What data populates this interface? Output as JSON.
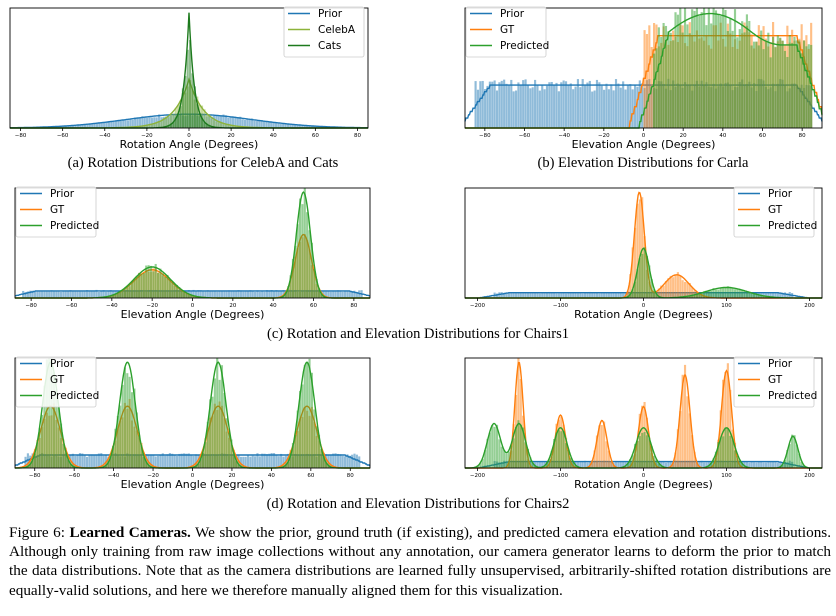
{
  "colors": {
    "prior": "#1f77b4",
    "gt": "#ff7f0e",
    "predicted": "#2ca02c",
    "celeba": "#8db33a",
    "cats": "#1d7a1d"
  },
  "panels": [
    {
      "id": "a",
      "xlabel": "Rotation Angle (Degrees)",
      "caption": "(a) Rotation Distributions for CelebA and Cats",
      "legend": [
        "Prior",
        "CelebA",
        "Cats"
      ],
      "legend_pos": "top-right",
      "ticks": [
        "−80",
        "−60",
        "−40",
        "−20",
        "0",
        "20",
        "40",
        "60",
        "80"
      ]
    },
    {
      "id": "b",
      "xlabel": "Elevation Angle (Degrees)",
      "caption": "(b) Elevation Distributions for Carla",
      "legend": [
        "Prior",
        "GT",
        "Predicted"
      ],
      "legend_pos": "top-left",
      "ticks": [
        "−80",
        "−60",
        "−40",
        "−20",
        "0",
        "20",
        "40",
        "60",
        "80"
      ]
    },
    {
      "id": "c1",
      "xlabel": "Elevation Angle (Degrees)",
      "legend": [
        "Prior",
        "GT",
        "Predicted"
      ],
      "legend_pos": "top-left",
      "ticks": [
        "−80",
        "−60",
        "−40",
        "−20",
        "0",
        "20",
        "40",
        "60",
        "80"
      ]
    },
    {
      "id": "c2",
      "xlabel": "Rotation Angle (Degrees)",
      "legend": [
        "Prior",
        "GT",
        "Predicted"
      ],
      "legend_pos": "top-right",
      "ticks": [
        "−200",
        "−100",
        "0",
        "100",
        "200"
      ]
    },
    {
      "id": "d1",
      "xlabel": "Elevation Angle (Degrees)",
      "legend": [
        "Prior",
        "GT",
        "Predicted"
      ],
      "legend_pos": "top-left",
      "ticks": [
        "−80",
        "−60",
        "−40",
        "−20",
        "0",
        "20",
        "40",
        "60",
        "80"
      ]
    },
    {
      "id": "d2",
      "xlabel": "Rotation Angle (Degrees)",
      "legend": [
        "Prior",
        "GT",
        "Predicted"
      ],
      "legend_pos": "top-right",
      "ticks": [
        "−200",
        "−100",
        "0",
        "100",
        "200"
      ]
    }
  ],
  "row_captions": {
    "c": "(c) Rotation and Elevation Distributions for Chairs1",
    "d": "(d) Rotation and Elevation Distributions for Chairs2"
  },
  "figure_caption": {
    "label": "Figure 6:",
    "title": "Learned Cameras.",
    "body": "We show the prior, ground truth (if existing), and predicted camera elevation and rotation distributions. Although only training from raw image collections without any annotation, our camera generator learns to deform the prior to match the data distributions. Note that as the camera distributions are learned fully unsupervised, arbitrarily-shifted rotation distributions are equally-valid solutions, and here we therefore manually aligned them for this visualization."
  },
  "chart_data": [
    {
      "type": "area",
      "panel": "a",
      "xlabel": "Rotation Angle (Degrees)",
      "xlim": [
        -85,
        85
      ],
      "series": [
        {
          "name": "Prior",
          "kind": "gaussian",
          "mu": 0,
          "sigma": 30,
          "peak": 0.12
        },
        {
          "name": "CelebA",
          "kind": "laplace",
          "mu": 0,
          "b": 7,
          "peak": 0.42
        },
        {
          "name": "Cats",
          "kind": "laplace",
          "mu": 0,
          "b": 2.5,
          "peak": 1.0
        }
      ]
    },
    {
      "type": "area",
      "panel": "b",
      "xlabel": "Elevation Angle (Degrees)",
      "xlim": [
        -90,
        90
      ],
      "series": [
        {
          "name": "Prior",
          "kind": "uniform",
          "lo": -85,
          "hi": 85,
          "peak": 0.26
        },
        {
          "name": "GT",
          "kind": "uniform",
          "lo": 0,
          "hi": 85,
          "peak": 0.56
        },
        {
          "name": "Predicted",
          "kind": "plateau",
          "lo": 5,
          "hi": 85,
          "peak": 0.7
        }
      ]
    },
    {
      "type": "area",
      "panel": "c1",
      "xlabel": "Elevation Angle (Degrees)",
      "xlim": [
        -88,
        88
      ],
      "series": [
        {
          "name": "Prior",
          "kind": "uniform",
          "lo": -85,
          "hi": 85,
          "peak": 0.05
        },
        {
          "name": "GT",
          "kind": "mixture",
          "components": [
            [
              -20,
              9,
              0.2
            ],
            [
              55,
              4,
              0.45
            ]
          ]
        },
        {
          "name": "Predicted",
          "kind": "mixture",
          "components": [
            [
              -20,
              9,
              0.22
            ],
            [
              55,
              3.5,
              0.75
            ]
          ]
        }
      ]
    },
    {
      "type": "area",
      "panel": "c2",
      "xlabel": "Rotation Angle (Degrees)",
      "xlim": [
        -215,
        215
      ],
      "series": [
        {
          "name": "Prior",
          "kind": "uniform",
          "lo": -180,
          "hi": 180,
          "peak": 0.05
        },
        {
          "name": "GT",
          "kind": "mixture",
          "components": [
            [
              -5,
              6,
              1.0
            ],
            [
              40,
              15,
              0.22
            ]
          ]
        },
        {
          "name": "Predicted",
          "kind": "mixture",
          "components": [
            [
              0,
              7,
              0.47
            ],
            [
              100,
              25,
              0.1
            ]
          ]
        }
      ]
    },
    {
      "type": "area",
      "panel": "d1",
      "xlabel": "Elevation Angle (Degrees)",
      "xlim": [
        -90,
        90
      ],
      "series": [
        {
          "name": "Prior",
          "kind": "uniform",
          "lo": -85,
          "hi": 85,
          "peak": 0.08
        },
        {
          "name": "GT",
          "kind": "mixture",
          "components": [
            [
              -72,
              5,
              0.38
            ],
            [
              -33,
              5,
              0.38
            ],
            [
              13,
              5,
              0.38
            ],
            [
              58,
              5,
              0.38
            ]
          ]
        },
        {
          "name": "Predicted",
          "kind": "mixture",
          "components": [
            [
              -72,
              4,
              0.65
            ],
            [
              -33,
              4,
              0.65
            ],
            [
              13,
              4,
              0.65
            ],
            [
              58,
              4,
              0.65
            ]
          ]
        }
      ]
    },
    {
      "type": "area",
      "panel": "d2",
      "xlabel": "Rotation Angle (Degrees)",
      "xlim": [
        -215,
        215
      ],
      "series": [
        {
          "name": "Prior",
          "kind": "uniform",
          "lo": -180,
          "hi": 180,
          "peak": 0.06
        },
        {
          "name": "GT",
          "kind": "mixture",
          "components": [
            [
              -150,
              5,
              1.0
            ],
            [
              -100,
              6,
              0.5
            ],
            [
              -50,
              6,
              0.45
            ],
            [
              0,
              6,
              0.58
            ],
            [
              50,
              6,
              0.88
            ],
            [
              100,
              6,
              0.92
            ]
          ]
        },
        {
          "name": "Predicted",
          "kind": "mixture",
          "components": [
            [
              -180,
              8,
              0.42
            ],
            [
              -150,
              8,
              0.42
            ],
            [
              -100,
              8,
              0.38
            ],
            [
              0,
              9,
              0.38
            ],
            [
              100,
              9,
              0.38
            ],
            [
              180,
              6,
              0.3
            ]
          ]
        }
      ]
    }
  ]
}
